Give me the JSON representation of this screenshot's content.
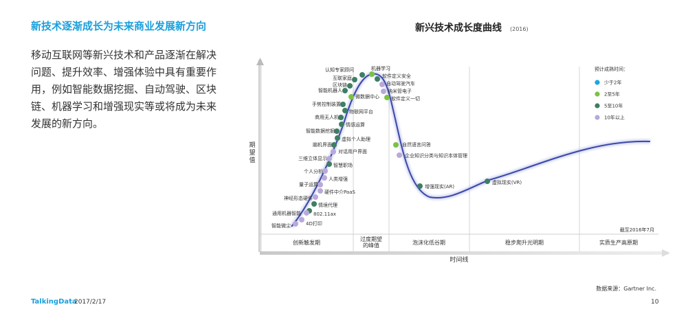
{
  "slide": {
    "headline": "新技术逐渐成长为未来商业发展新方向",
    "body": "移动互联网等新兴技术和产品逐渐在解决问题、提升效率、增强体验中具有重要作用，例如智能数据挖掘、自动驾驶、区块链、机器学习和增强现实等或将成为未来发展的新方向。",
    "footer_brand": "TalkingData",
    "footer_date": "2017/2/17",
    "page_number": "10"
  },
  "chart_data": {
    "type": "scatter",
    "title": "新兴技术成长度曲线",
    "title_year": "(2016)",
    "ylabel": "期望值",
    "xlabel": "时间线",
    "phases": [
      "创新触发期",
      "过度期望的峰值",
      "泡沫化低谷期",
      "稳步爬升光明期",
      "实质生产高原期"
    ],
    "as_of_note": "截至2016年7月",
    "source": "数据来源：Gartner Inc.",
    "legend": {
      "title": "预计成熟时间：",
      "placement": "top-right",
      "items": [
        {
          "name": "少于2年",
          "color": "#1aa7df"
        },
        {
          "name": "2至5年",
          "color": "#7cc242"
        },
        {
          "name": "5至10年",
          "color": "#3e7e64"
        },
        {
          "name": "10年以上",
          "color": "#b9a9d9"
        }
      ]
    },
    "points": [
      {
        "label": "认知专家顾问",
        "maturity": "5至10年"
      },
      {
        "label": "机器学习",
        "maturity": "2至5年"
      },
      {
        "label": "软件定义安全",
        "maturity": "5至10年"
      },
      {
        "label": "互联家庭",
        "maturity": "5至10年"
      },
      {
        "label": "自动驾驶汽车",
        "maturity": "10年以上"
      },
      {
        "label": "区块链",
        "maturity": "5至10年"
      },
      {
        "label": "微数据中心",
        "maturity": "2至5年"
      },
      {
        "label": "智能机器人",
        "maturity": "5至10年"
      },
      {
        "label": "纳米管电子",
        "maturity": "10年以上"
      },
      {
        "label": "软件定义一切",
        "maturity": "2至5年"
      },
      {
        "label": "手势控制装置",
        "maturity": "5至10年"
      },
      {
        "label": "物联网平台",
        "maturity": "5至10年"
      },
      {
        "label": "商用无人机",
        "maturity": "5至10年"
      },
      {
        "label": "情感运算",
        "maturity": "5至10年"
      },
      {
        "label": "智能数据挖掘",
        "maturity": "5至10年"
      },
      {
        "label": "虚拟个人助理",
        "maturity": "5至10年"
      },
      {
        "label": "脑机界面",
        "maturity": "5至10年"
      },
      {
        "label": "对话用户界面",
        "maturity": "10年以上"
      },
      {
        "label": "自然语言问答",
        "maturity": "2至5年"
      },
      {
        "label": "企业知识分类与知识本体管理",
        "maturity": "10年以上"
      },
      {
        "label": "三维立体显示",
        "maturity": "10年以上"
      },
      {
        "label": "智慧职场",
        "maturity": "5至10年"
      },
      {
        "label": "个人分析",
        "maturity": "10年以上"
      },
      {
        "label": "人类增强",
        "maturity": "10年以上"
      },
      {
        "label": "量子运算",
        "maturity": "10年以上"
      },
      {
        "label": "硬件中介PaaS",
        "maturity": "10年以上"
      },
      {
        "label": "神经形态硬件",
        "maturity": "10年以上"
      },
      {
        "label": "情境代理",
        "maturity": "5至10年"
      },
      {
        "label": "802.11ax",
        "maturity": "5至10年"
      },
      {
        "label": "通用机器智能",
        "maturity": "10年以上"
      },
      {
        "label": "4D打印",
        "maturity": "10年以上"
      },
      {
        "label": "智能微尘",
        "maturity": "10年以上"
      },
      {
        "label": "增强现实(AR)",
        "maturity": "5至10年"
      },
      {
        "label": "虚拟现实(VR)",
        "maturity": "5至10年"
      }
    ]
  }
}
